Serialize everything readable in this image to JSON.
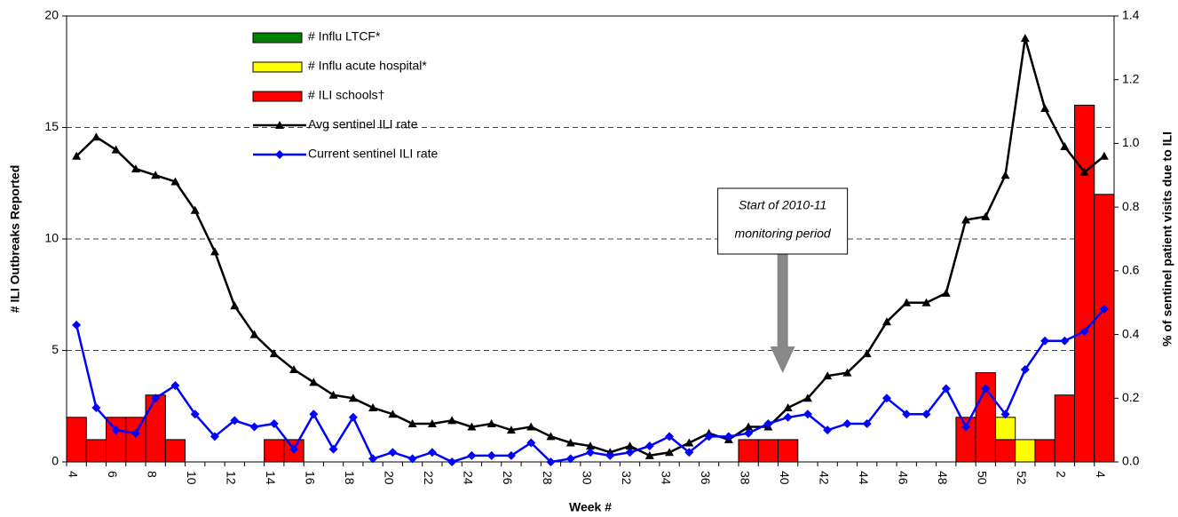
{
  "chart_data": {
    "type": "combo",
    "categories": [
      "4",
      null,
      "6",
      null,
      "8",
      null,
      "10",
      null,
      "12",
      null,
      "14",
      null,
      "16",
      null,
      "18",
      null,
      "20",
      null,
      "22",
      null,
      "24",
      null,
      "26",
      null,
      "28",
      null,
      "30",
      null,
      "32",
      null,
      "34",
      null,
      "36",
      null,
      "38",
      null,
      "40",
      null,
      "42",
      null,
      "44",
      null,
      "46",
      null,
      "48",
      null,
      "50",
      null,
      "52",
      null,
      "2",
      null,
      "4"
    ],
    "x_label": "Week #",
    "y_label": "# ILI Outbreaks Reported",
    "y2_label": "% of sentinel patient visits due to ILI",
    "ylim": [
      0,
      20
    ],
    "yticks": [
      0,
      5,
      10,
      15,
      20
    ],
    "y2lim": [
      0,
      1.4
    ],
    "y2ticks": [
      {
        "value": 0,
        "label": "0.0"
      },
      0.2,
      0.4,
      0.6,
      0.8,
      {
        "value": 1,
        "label": "1.0"
      },
      1.2,
      1.4
    ],
    "grid": true,
    "legend": "top-left",
    "annotation": [
      "Start of 2010-11",
      "monitoring period"
    ],
    "series": [
      {
        "name": "# Influ LTCF*",
        "type": "bar",
        "color": "#008000",
        "values": [
          0,
          0,
          0,
          0,
          0,
          0,
          0,
          0,
          0,
          0,
          0,
          0,
          0,
          0,
          0,
          0,
          0,
          0,
          0,
          0,
          0,
          0,
          0,
          0,
          0,
          0,
          0,
          0,
          0,
          0,
          0,
          0,
          0,
          0,
          0,
          0,
          0,
          0,
          0,
          0,
          0,
          0,
          0,
          0,
          0,
          0,
          0,
          0,
          0,
          0,
          0,
          0,
          0
        ]
      },
      {
        "name": "# Influ acute hospital*",
        "type": "bar",
        "color": "#ffff00",
        "values": [
          0,
          0,
          0,
          0,
          0,
          0,
          0,
          0,
          0,
          0,
          0,
          0,
          0,
          0,
          0,
          0,
          0,
          0,
          0,
          0,
          0,
          0,
          0,
          0,
          0,
          0,
          0,
          0,
          0,
          0,
          0,
          0,
          0,
          0,
          0,
          0,
          0,
          0,
          0,
          0,
          0,
          0,
          0,
          0,
          0,
          0,
          0,
          1,
          1,
          0,
          0,
          0,
          0
        ]
      },
      {
        "name": "# ILI schools†",
        "type": "bar",
        "color": "#ff0000",
        "values": [
          2,
          1,
          2,
          2,
          3,
          1,
          0,
          0,
          0,
          0,
          1,
          1,
          0,
          0,
          0,
          0,
          0,
          0,
          0,
          0,
          0,
          0,
          0,
          0,
          0,
          0,
          0,
          0,
          0,
          0,
          0,
          0,
          0,
          0,
          1,
          1,
          1,
          0,
          0,
          0,
          0,
          0,
          0,
          0,
          0,
          2,
          4,
          1,
          0,
          1,
          3,
          16,
          12
        ]
      },
      {
        "name": "Avg sentinel ILI rate",
        "type": "line",
        "axis": "y2",
        "color": "#000000",
        "marker": "triangle",
        "values": [
          0.96,
          1.02,
          0.98,
          0.92,
          0.9,
          0.88,
          0.79,
          0.66,
          0.49,
          0.4,
          0.34,
          0.29,
          0.25,
          0.21,
          0.2,
          0.17,
          0.15,
          0.12,
          0.12,
          0.13,
          0.11,
          0.12,
          0.1,
          0.11,
          0.08,
          0.06,
          0.05,
          0.03,
          0.05,
          0.02,
          0.03,
          0.06,
          0.09,
          0.07,
          0.11,
          0.11,
          0.17,
          0.2,
          0.27,
          0.28,
          0.34,
          0.44,
          0.5,
          0.5,
          0.53,
          0.76,
          0.77,
          0.9,
          1.33,
          1.11,
          0.99,
          0.91,
          0.96
        ]
      },
      {
        "name": "Current sentinel ILI rate",
        "type": "line",
        "axis": "y2",
        "color": "#0000ff",
        "marker": "diamond",
        "values": [
          0.43,
          0.17,
          0.1,
          0.09,
          0.2,
          0.24,
          0.15,
          0.08,
          0.13,
          0.11,
          0.12,
          0.04,
          0.15,
          0.04,
          0.14,
          0.01,
          0.03,
          0.01,
          0.03,
          0,
          0.02,
          0.02,
          0.02,
          0.06,
          0,
          0.01,
          0.03,
          0.02,
          0.03,
          0.05,
          0.08,
          0.03,
          0.08,
          0.08,
          0.09,
          0.12,
          0.14,
          0.15,
          0.1,
          0.12,
          0.12,
          0.2,
          0.15,
          0.15,
          0.23,
          0.11,
          0.23,
          0.15,
          0.29,
          0.38,
          0.38,
          0.41,
          0.48
        ]
      }
    ]
  }
}
